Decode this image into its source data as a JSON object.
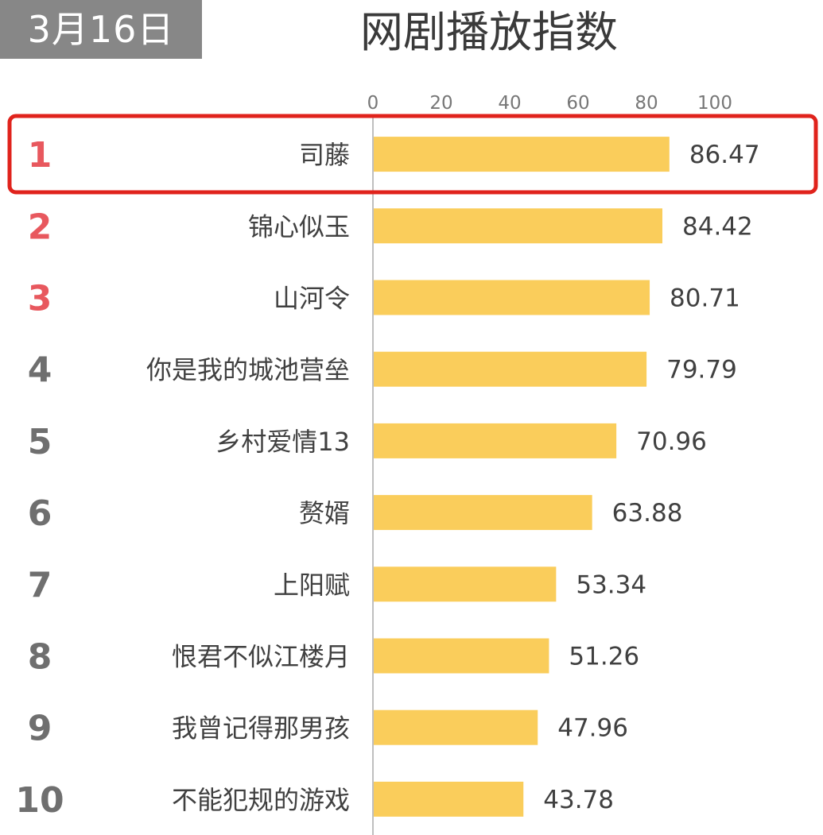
{
  "header": {
    "date": "3月16日",
    "title": "网剧播放指数"
  },
  "colors": {
    "bar": "#FACD5B",
    "rank_top": "#E8585E",
    "rank_other": "#6F6F6F",
    "highlight_border": "#E0231C",
    "axis_line": "#BFBFBF",
    "label": "#404040",
    "tick": "#777777"
  },
  "chart_data": {
    "type": "bar",
    "orientation": "horizontal",
    "title": "网剧播放指数",
    "xlim": [
      0,
      100
    ],
    "ticks": [
      "0",
      "20",
      "40",
      "60",
      "80",
      "100"
    ],
    "tick_values": [
      0,
      20,
      40,
      60,
      80,
      100
    ],
    "highlighted_rank": 1,
    "ranks": [
      "1",
      "2",
      "3",
      "4",
      "5",
      "6",
      "7",
      "8",
      "9",
      "10"
    ],
    "categories": [
      "司藤",
      "锦心似玉",
      "山河令",
      "你是我的城池营垒",
      "乡村爱情13",
      "赘婿",
      "上阳赋",
      "恨君不似江楼月",
      "我曾记得那男孩",
      "不能犯规的游戏"
    ],
    "values": [
      86.47,
      84.42,
      80.71,
      79.79,
      70.96,
      63.88,
      53.34,
      51.26,
      47.96,
      43.78
    ],
    "value_labels": [
      "86.47",
      "84.42",
      "80.71",
      "79.79",
      "70.96",
      "63.88",
      "53.34",
      "51.26",
      "47.96",
      "43.78"
    ]
  }
}
